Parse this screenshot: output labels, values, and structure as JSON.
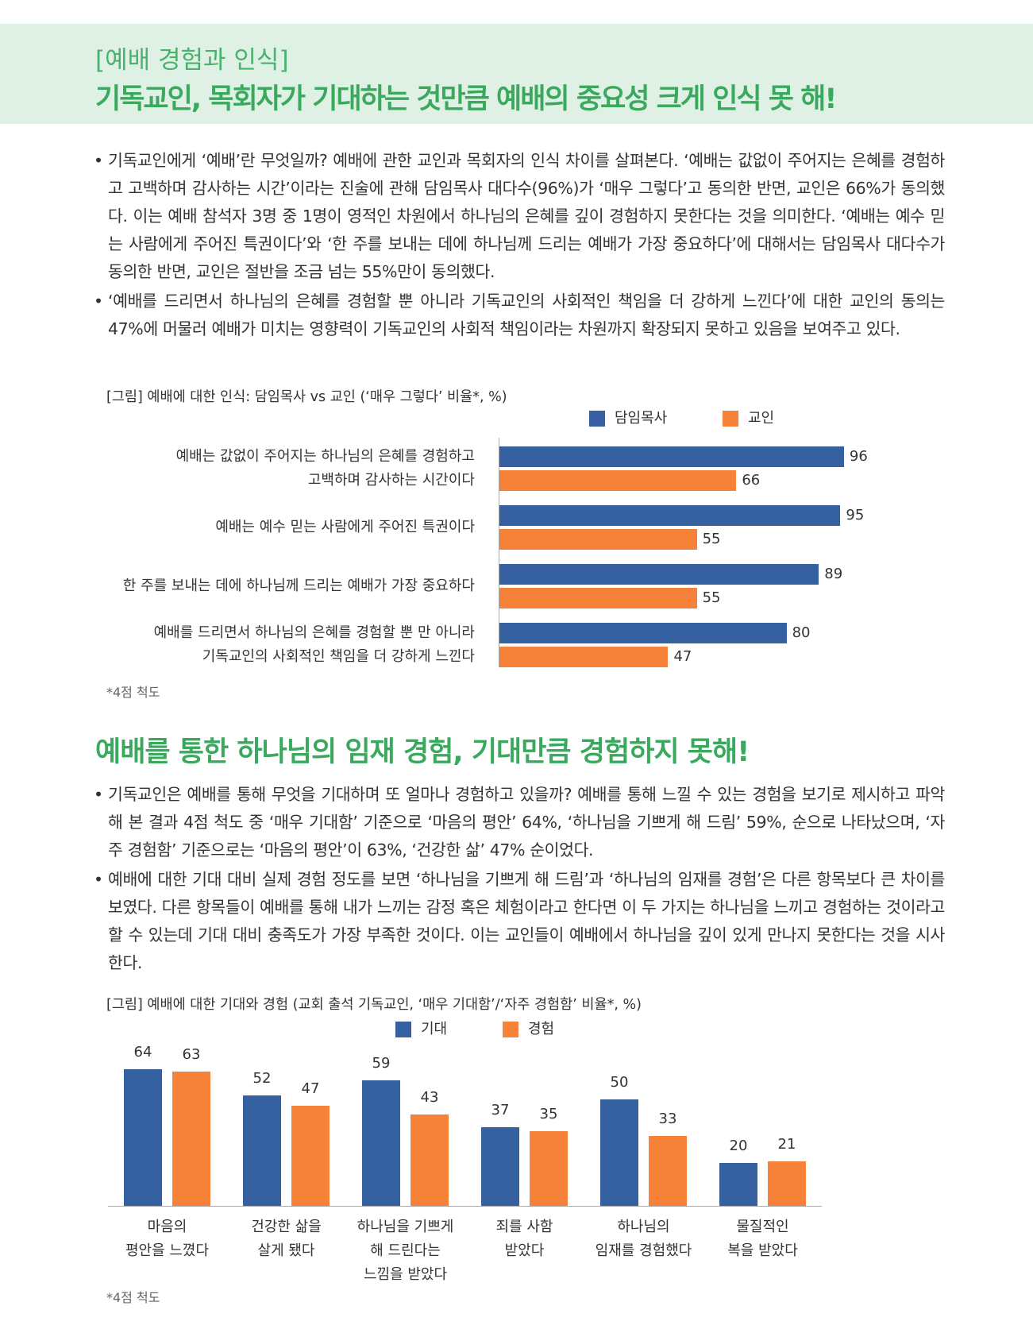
{
  "header": {
    "subtitle": "[예배 경험과 인식]",
    "title": "기독교인, 목회자가 기대하는 것만큼 예배의 중요성 크게 인식 못 해!"
  },
  "section1": {
    "bullets": [
      "기독교인에게 ‘예배’란 무엇일까? 예배에 관한 교인과 목회자의 인식 차이를 살펴본다. ‘예배는 값없이 주어지는 은혜를 경험하고 고백하며 감사하는 시간’이라는 진술에 관해 담임목사 대다수(96%)가 ‘매우 그렇다’고 동의한 반면, 교인은 66%가 동의했다. 이는 예배 참석자 3명 중 1명이 영적인 차원에서 하나님의 은혜를 깊이 경험하지 못한다는 것을 의미한다. ‘예배는 예수 믿는 사람에게 주어진 특권이다’와 ‘한 주를 보내는 데에 하나님께 드리는 예배가 가장 중요하다’에 대해서는 담임목사 대다수가 동의한 반면, 교인은 절반을 조금 넘는 55%만이 동의했다.",
      "‘예배를 드리면서 하나님의 은혜를 경험할 뿐 아니라 기독교인의 사회적인 책임을 더 강하게 느낀다’에 대한 교인의 동의는 47%에 머물러 예배가 미치는 영향력이 기독교인의 사회적 책임이라는 차원까지 확장되지 못하고 있음을 보여주고 있다."
    ]
  },
  "section2": {
    "title": "예배를 통한 하나님의 임재 경험, 기대만큼 경험하지 못해!",
    "bullets": [
      "기독교인은 예배를 통해 무엇을 기대하며 또 얼마나 경험하고 있을까? 예배를 통해 느낄 수 있는 경험을 보기로 제시하고 파악해 본 결과 4점 척도 중 ‘매우 기대함’ 기준으로 ‘마음의 평안’ 64%, ‘하나님을 기쁘게 해 드림’ 59%, 순으로 나타났으며, ‘자주 경험함’ 기준으로는 ‘마음의 평안’이 63%, ‘건강한 삶’ 47% 순이었다.",
      "예배에 대한 기대 대비 실제 경험 정도를 보면 ‘하나님을 기쁘게 해 드림’과 ‘하나님의 임재를 경험’은 다른 항목보다 큰 차이를 보였다. 다른 항목들이 예배를 통해 내가 느끼는 감정 혹은 체험이라고 한다면 이 두 가지는 하나님을 느끼고 경험하는 것이라고 할 수 있는데 기대 대비 충족도가 가장 부족한 것이다. 이는 교인들이 예배에서 하나님을 깊이 있게 만나지 못한다는 것을 시사한다."
    ]
  },
  "chart_data": [
    {
      "type": "bar",
      "orientation": "horizontal",
      "title": "[그림] 예배에 대한 인식: 담임목사 vs 교인 (‘매우 그렇다’ 비율*, %)",
      "note": "*4점 척도",
      "categories": [
        "예배는 값없이 주어지는 하나님의 은혜를 경험하고\n고백하며 감사하는 시간이다",
        "예배는 예수 믿는 사람에게 주어진 특권이다",
        "한 주를 보내는 데에 하나님께 드리는 예배가 가장 중요하다",
        "예배를 드리면서 하나님의 은혜를 경험할 뿐 만 아니라\n기독교인의 사회적인 책임을 더 강하게 느낀다"
      ],
      "series": [
        {
          "name": "담임목사",
          "color": "#3661a0",
          "values": [
            96,
            95,
            89,
            80
          ]
        },
        {
          "name": "교인",
          "color": "#f6823a",
          "values": [
            66,
            55,
            55,
            47
          ]
        }
      ]
    },
    {
      "type": "bar",
      "orientation": "vertical",
      "title": "[그림] 예배에 대한 기대와 경험 (교회 출석 기독교인, ‘매우 기대함’/‘자주 경험함’ 비율*, %)",
      "note": "*4점 척도",
      "categories": [
        "마음의\n평안을 느꼈다",
        "건강한 삶을\n살게 됐다",
        "하나님을 기쁘게\n해 드린다는\n느낌을 받았다",
        "죄를 사함\n받았다",
        "하나님의\n임재를 경험했다",
        "물질적인\n복을 받았다"
      ],
      "series": [
        {
          "name": "기대",
          "color": "#3661a0",
          "values": [
            64,
            52,
            59,
            37,
            50,
            20
          ]
        },
        {
          "name": "경험",
          "color": "#f6823a",
          "values": [
            63,
            47,
            43,
            35,
            33,
            21
          ]
        }
      ]
    }
  ]
}
